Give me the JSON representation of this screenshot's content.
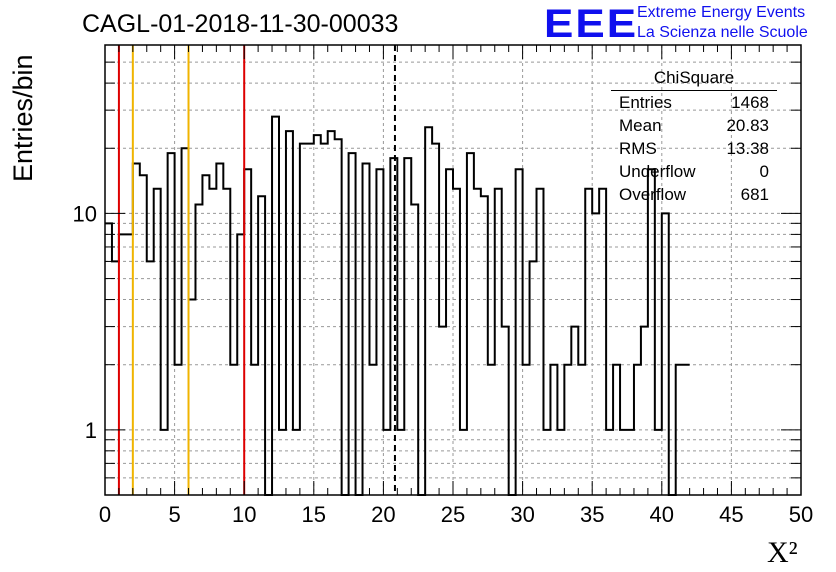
{
  "header": {
    "run_title": "CAGL-01-2018-11-30-00033",
    "logo_text": "EEE",
    "logo_line1": "Extreme Energy Events",
    "logo_line2": "La Scienza nelle Scuole"
  },
  "stats_box": {
    "title": "ChiSquare",
    "rows": [
      {
        "key": "Entries",
        "value": "1468"
      },
      {
        "key": "Mean",
        "value": "20.83"
      },
      {
        "key": "RMS",
        "value": "13.38"
      },
      {
        "key": "Underflow",
        "value": "0"
      },
      {
        "key": "Overflow",
        "value": "681"
      }
    ]
  },
  "colors": {
    "histogram": "#000000",
    "red_lines": "#dd0000",
    "yellow_lines": "#f0b400",
    "mean_line": "#000000",
    "grid": "#999999"
  },
  "chart_data": {
    "type": "histogram",
    "xlabel": "X²",
    "ylabel": "Entries/bin",
    "xlim": [
      0,
      50
    ],
    "ylim": [
      0.5,
      60
    ],
    "yscale": "log",
    "grid": true,
    "x_ticks": [
      "0",
      "5",
      "10",
      "15",
      "20",
      "25",
      "30",
      "35",
      "40",
      "45",
      "50"
    ],
    "y_ticks": [
      "1",
      "10"
    ],
    "bin_width": 0.5,
    "bin_values": [
      9,
      6,
      8,
      8,
      17,
      15,
      6,
      13,
      1,
      19,
      2,
      20,
      4,
      11,
      15,
      13,
      17,
      13,
      2,
      8,
      16,
      2,
      12,
      0,
      28,
      1,
      24,
      1,
      21,
      21,
      23,
      21,
      24,
      22,
      0,
      19,
      0,
      17,
      2,
      16,
      1,
      18,
      1,
      18,
      11,
      0,
      25,
      21,
      3,
      16,
      13,
      1,
      19,
      13,
      12,
      2,
      13,
      3,
      0,
      16,
      2,
      6,
      13,
      1,
      2,
      1,
      2,
      3,
      2,
      13,
      10,
      13,
      1,
      2,
      1,
      1,
      2,
      3,
      16,
      1,
      10,
      0,
      2,
      2
    ],
    "vertical_lines": [
      {
        "x": 1,
        "style": "red"
      },
      {
        "x": 2,
        "style": "yellow"
      },
      {
        "x": 6,
        "style": "yellow"
      },
      {
        "x": 10,
        "style": "red"
      },
      {
        "x": 20.83,
        "style": "mean-dashed"
      }
    ],
    "legend_position": "top-right"
  }
}
